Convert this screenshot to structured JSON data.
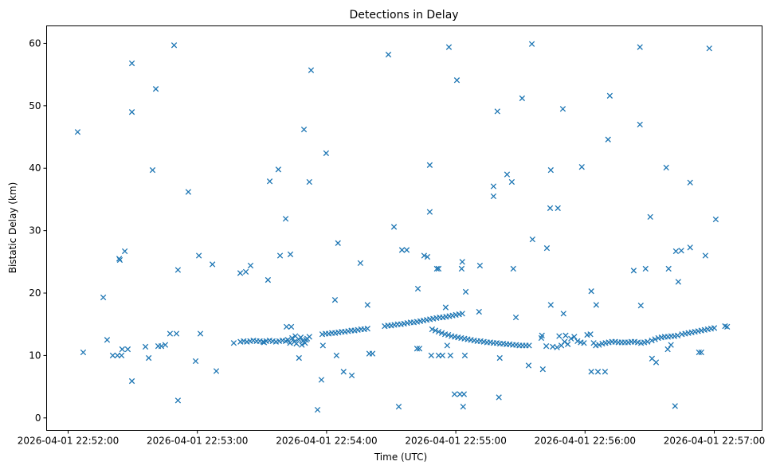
{
  "chart_data": {
    "type": "scatter",
    "title": "Detections in Delay",
    "xlabel": "Time (UTC)",
    "ylabel": "Bistatic Delay (km)",
    "x_units": "seconds after 2026-04-01 22:52:00",
    "xlim": [
      -10,
      322.2
    ],
    "ylim": [
      -2.0,
      62.8
    ],
    "grid": false,
    "marker": "x",
    "color": "#1f77b4",
    "x_ticks": [
      {
        "value": 0,
        "label": "2026-04-01 22:52:00"
      },
      {
        "value": 60,
        "label": "2026-04-01 22:53:00"
      },
      {
        "value": 120,
        "label": "2026-04-01 22:54:00"
      },
      {
        "value": 180,
        "label": "2026-04-01 22:55:00"
      },
      {
        "value": 240,
        "label": "2026-04-01 22:56:00"
      },
      {
        "value": 300,
        "label": "2026-04-01 22:57:00"
      }
    ],
    "y_ticks": [
      {
        "value": 0,
        "label": "0"
      },
      {
        "value": 10,
        "label": "10"
      },
      {
        "value": 20,
        "label": "20"
      },
      {
        "value": 30,
        "label": "30"
      },
      {
        "value": 40,
        "label": "40"
      },
      {
        "value": 50,
        "label": "50"
      },
      {
        "value": 60,
        "label": "60"
      }
    ],
    "points": [
      [
        4.4,
        45.8
      ],
      [
        7,
        10.5
      ],
      [
        16.3,
        19.3
      ],
      [
        18.1,
        12.5
      ],
      [
        20.7,
        10
      ],
      [
        22.9,
        10
      ],
      [
        23.7,
        25.5
      ],
      [
        24,
        25.3
      ],
      [
        24.8,
        10
      ],
      [
        25.1,
        11
      ],
      [
        26.3,
        26.7
      ],
      [
        27.7,
        11
      ],
      [
        29.6,
        56.8
      ],
      [
        29.6,
        49
      ],
      [
        29.6,
        5.9
      ],
      [
        35.9,
        11.4
      ],
      [
        37.4,
        9.6
      ],
      [
        39.2,
        39.7
      ],
      [
        40.7,
        52.7
      ],
      [
        41.8,
        11.5
      ],
      [
        43.3,
        11.5
      ],
      [
        45.1,
        11.7
      ],
      [
        47.3,
        13.5
      ],
      [
        49.2,
        59.7
      ],
      [
        50.3,
        13.5
      ],
      [
        51,
        23.7
      ],
      [
        51,
        2.8
      ],
      [
        55.8,
        36.2
      ],
      [
        59.2,
        9.1
      ],
      [
        60.7,
        26
      ],
      [
        61.4,
        13.5
      ],
      [
        67,
        24.6
      ],
      [
        68.8,
        7.5
      ],
      [
        76.9,
        12
      ],
      [
        79.9,
        23.2
      ],
      [
        82.5,
        23.4
      ],
      [
        84.7,
        24.4
      ],
      [
        92.8,
        22.1
      ],
      [
        93.6,
        37.9
      ],
      [
        97.6,
        39.8
      ],
      [
        98.4,
        26
      ],
      [
        101,
        31.9
      ],
      [
        101.4,
        14.6
      ],
      [
        103.2,
        26.2
      ],
      [
        103.6,
        14.6
      ],
      [
        107.2,
        9.6
      ],
      [
        109.5,
        46.2
      ],
      [
        112,
        37.8
      ],
      [
        112.8,
        55.7
      ],
      [
        115.8,
        1.3
      ],
      [
        117.6,
        6.1
      ],
      [
        118.3,
        11.6
      ],
      [
        119.8,
        42.4
      ],
      [
        123.9,
        18.9
      ],
      [
        124.6,
        10
      ],
      [
        125.3,
        28
      ],
      [
        127.9,
        7.4
      ],
      [
        131.7,
        6.8
      ],
      [
        135.7,
        24.8
      ],
      [
        139,
        18.1
      ],
      [
        139.8,
        10.3
      ],
      [
        141.3,
        10.3
      ],
      [
        148.7,
        58.2
      ],
      [
        151.3,
        30.6
      ],
      [
        153.5,
        1.8
      ],
      [
        155,
        26.9
      ],
      [
        157.2,
        26.9
      ],
      [
        162.4,
        20.7
      ],
      [
        162,
        11.1
      ],
      [
        163.1,
        11.1
      ],
      [
        165.3,
        26
      ],
      [
        166.8,
        25.8
      ],
      [
        167.9,
        40.5
      ],
      [
        167.9,
        33
      ],
      [
        168.6,
        10
      ],
      [
        171.2,
        23.9
      ],
      [
        172,
        23.9
      ],
      [
        172,
        10
      ],
      [
        173.8,
        10
      ],
      [
        175.3,
        17.7
      ],
      [
        176,
        11.6
      ],
      [
        176.8,
        59.4
      ],
      [
        177.5,
        10
      ],
      [
        179.4,
        3.8
      ],
      [
        180.5,
        54.1
      ],
      [
        181.9,
        3.8
      ],
      [
        182.7,
        23.9
      ],
      [
        183,
        25
      ],
      [
        183.4,
        1.8
      ],
      [
        183.8,
        3.8
      ],
      [
        184.2,
        10
      ],
      [
        184.6,
        20.2
      ],
      [
        191.2,
        24.4
      ],
      [
        190.8,
        17
      ],
      [
        197.5,
        37.1
      ],
      [
        197.5,
        35.5
      ],
      [
        199.3,
        49.1
      ],
      [
        200,
        3.3
      ],
      [
        200.4,
        9.6
      ],
      [
        203.8,
        39
      ],
      [
        206,
        37.8
      ],
      [
        206.7,
        23.9
      ],
      [
        207.9,
        16.1
      ],
      [
        210.8,
        51.2
      ],
      [
        213.8,
        8.4
      ],
      [
        215.3,
        59.9
      ],
      [
        215.6,
        28.6
      ],
      [
        219.7,
        12.8
      ],
      [
        220.4,
        7.8
      ],
      [
        222.3,
        27.2
      ],
      [
        223.8,
        33.6
      ],
      [
        224.1,
        39.7
      ],
      [
        224.1,
        18.1
      ],
      [
        227.4,
        33.6
      ],
      [
        229.7,
        49.5
      ],
      [
        230,
        16.7
      ],
      [
        238.5,
        40.2
      ],
      [
        242.9,
        7.4
      ],
      [
        242.9,
        20.3
      ],
      [
        245.2,
        18.1
      ],
      [
        246,
        7.4
      ],
      [
        249.3,
        7.4
      ],
      [
        250.7,
        44.6
      ],
      [
        251.5,
        51.6
      ],
      [
        262.6,
        23.6
      ],
      [
        265.5,
        59.4
      ],
      [
        265.5,
        47
      ],
      [
        265.9,
        18
      ],
      [
        268.1,
        23.9
      ],
      [
        270.3,
        32.2
      ],
      [
        271.1,
        9.5
      ],
      [
        273,
        8.9
      ],
      [
        277.7,
        40.1
      ],
      [
        278.8,
        23.9
      ],
      [
        281.8,
        1.9
      ],
      [
        282.2,
        26.7
      ],
      [
        283.3,
        21.8
      ],
      [
        284.7,
        26.8
      ],
      [
        288.8,
        27.3
      ],
      [
        288.8,
        37.7
      ],
      [
        292.9,
        10.5
      ],
      [
        294,
        10.5
      ],
      [
        295.9,
        26
      ],
      [
        297.7,
        59.2
      ],
      [
        300.7,
        31.8
      ],
      [
        278.4,
        11
      ],
      [
        279.9,
        11.7
      ],
      [
        80,
        12.2
      ],
      [
        81.5,
        12.3
      ],
      [
        83,
        12.2
      ],
      [
        84.5,
        12.3
      ],
      [
        86,
        12.4
      ],
      [
        87.5,
        12.3
      ],
      [
        89,
        12.3
      ],
      [
        90.5,
        12.2
      ],
      [
        92,
        12.3
      ],
      [
        93.5,
        12.4
      ],
      [
        95,
        12.3
      ],
      [
        96.5,
        12.2
      ],
      [
        98,
        12.3
      ],
      [
        99.5,
        12.4
      ],
      [
        101,
        12.3
      ],
      [
        102,
        12.5
      ],
      [
        103,
        12.0
      ],
      [
        104,
        12.8
      ],
      [
        105,
        12.2
      ],
      [
        106,
        11.9
      ],
      [
        107,
        12.6
      ],
      [
        108,
        12.9
      ],
      [
        109,
        12.3
      ],
      [
        110,
        12.0
      ],
      [
        111,
        12.7
      ],
      [
        112,
        13.0
      ],
      [
        105.5,
        13.1
      ],
      [
        108.5,
        11.7
      ],
      [
        110.5,
        12.5
      ],
      [
        91,
        12.1
      ],
      [
        118,
        13.4
      ],
      [
        119.5,
        13.5
      ],
      [
        121,
        13.5
      ],
      [
        122.5,
        13.6
      ],
      [
        124,
        13.6
      ],
      [
        125.5,
        13.7
      ],
      [
        127,
        13.8
      ],
      [
        128.5,
        13.8
      ],
      [
        130,
        13.9
      ],
      [
        131.5,
        14.0
      ],
      [
        133,
        14.0
      ],
      [
        134.5,
        14.1
      ],
      [
        136,
        14.2
      ],
      [
        137.5,
        14.2
      ],
      [
        139,
        14.3
      ],
      [
        147,
        14.7
      ],
      [
        148.5,
        14.8
      ],
      [
        150,
        14.8
      ],
      [
        151.5,
        14.9
      ],
      [
        153,
        15.0
      ],
      [
        154.5,
        15.0
      ],
      [
        156,
        15.1
      ],
      [
        157.5,
        15.2
      ],
      [
        159,
        15.3
      ],
      [
        160.5,
        15.3
      ],
      [
        162,
        15.4
      ],
      [
        163.5,
        15.5
      ],
      [
        165,
        15.6
      ],
      [
        166.5,
        15.7
      ],
      [
        168,
        15.8
      ],
      [
        169.5,
        15.9
      ],
      [
        171,
        16.0
      ],
      [
        172.5,
        16.1
      ],
      [
        174,
        16.1
      ],
      [
        175.5,
        16.2
      ],
      [
        177,
        16.3
      ],
      [
        178.5,
        16.4
      ],
      [
        180,
        16.5
      ],
      [
        181.5,
        16.6
      ],
      [
        183,
        16.7
      ],
      [
        169,
        14.2
      ],
      [
        170.5,
        14.0
      ],
      [
        172,
        13.8
      ],
      [
        173.5,
        13.6
      ],
      [
        175,
        13.4
      ],
      [
        176.5,
        13.3
      ],
      [
        178,
        13.1
      ],
      [
        179.5,
        13.0
      ],
      [
        181,
        12.9
      ],
      [
        182.5,
        12.8
      ],
      [
        184,
        12.7
      ],
      [
        185.5,
        12.6
      ],
      [
        187,
        12.5
      ],
      [
        188.5,
        12.4
      ],
      [
        190,
        12.3
      ],
      [
        191.5,
        12.3
      ],
      [
        193,
        12.2
      ],
      [
        194.5,
        12.1
      ],
      [
        196,
        12.1
      ],
      [
        197.5,
        12.0
      ],
      [
        199,
        12.0
      ],
      [
        200.5,
        11.9
      ],
      [
        202,
        11.9
      ],
      [
        203.5,
        11.8
      ],
      [
        205,
        11.8
      ],
      [
        206.5,
        11.7
      ],
      [
        208,
        11.7
      ],
      [
        209.5,
        11.6
      ],
      [
        211,
        11.6
      ],
      [
        212.5,
        11.6
      ],
      [
        214,
        11.6
      ],
      [
        222,
        11.5
      ],
      [
        225,
        11.4
      ],
      [
        227,
        11.3
      ],
      [
        229,
        11.6
      ],
      [
        230.5,
        12.2
      ],
      [
        232,
        11.8
      ],
      [
        233.5,
        12.7
      ],
      [
        235,
        13.0
      ],
      [
        236.5,
        12.3
      ],
      [
        238,
        12.1
      ],
      [
        239.5,
        12.0
      ],
      [
        241,
        13.3
      ],
      [
        242.5,
        13.4
      ],
      [
        244,
        12.0
      ],
      [
        231,
        13.2
      ],
      [
        228,
        13.1
      ],
      [
        220,
        13.2
      ],
      [
        245,
        11.6
      ],
      [
        246.5,
        11.7
      ],
      [
        248,
        11.9
      ],
      [
        249.5,
        12.0
      ],
      [
        251,
        12.1
      ],
      [
        252.5,
        12.2
      ],
      [
        254,
        12.2
      ],
      [
        255.5,
        12.1
      ],
      [
        257,
        12.1
      ],
      [
        258.5,
        12.1
      ],
      [
        260,
        12.1
      ],
      [
        261.5,
        12.2
      ],
      [
        263,
        12.2
      ],
      [
        264.5,
        12.1
      ],
      [
        266,
        12.0
      ],
      [
        267.5,
        12.1
      ],
      [
        269,
        12.2
      ],
      [
        271,
        12.4
      ],
      [
        272.5,
        12.6
      ],
      [
        274,
        12.8
      ],
      [
        275.5,
        12.9
      ],
      [
        277,
        13.0
      ],
      [
        278.5,
        13.0
      ],
      [
        280,
        13.1
      ],
      [
        281.5,
        13.1
      ],
      [
        283,
        13.2
      ],
      [
        285,
        13.4
      ],
      [
        286.5,
        13.5
      ],
      [
        288,
        13.6
      ],
      [
        289.5,
        13.7
      ],
      [
        291,
        13.8
      ],
      [
        292.5,
        13.9
      ],
      [
        294,
        14.0
      ],
      [
        295.5,
        14.1
      ],
      [
        297,
        14.2
      ],
      [
        298.5,
        14.3
      ],
      [
        300,
        14.4
      ],
      [
        305,
        14.7
      ],
      [
        306,
        14.6
      ]
    ]
  }
}
